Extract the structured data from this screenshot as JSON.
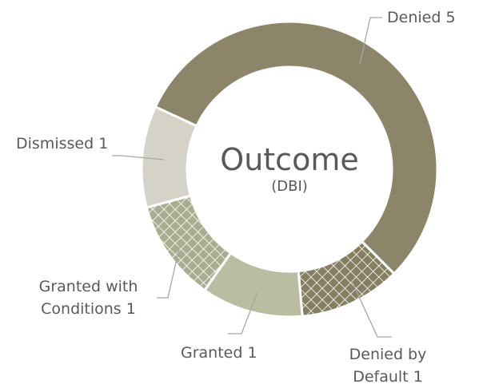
{
  "chart_data": {
    "type": "donut",
    "title": "Outcome",
    "subtitle": "(DBI)",
    "categories": [
      "Denied",
      "Denied by Default",
      "Granted",
      "Granted with Conditions",
      "Dismissed"
    ],
    "values": [
      5,
      1,
      1,
      1,
      1
    ],
    "colors": [
      "#8c8569",
      "#867e60",
      "#bbbda3",
      "#a9ad90",
      "#d5d3c8"
    ],
    "hatched": [
      false,
      true,
      false,
      true,
      false
    ]
  }
}
